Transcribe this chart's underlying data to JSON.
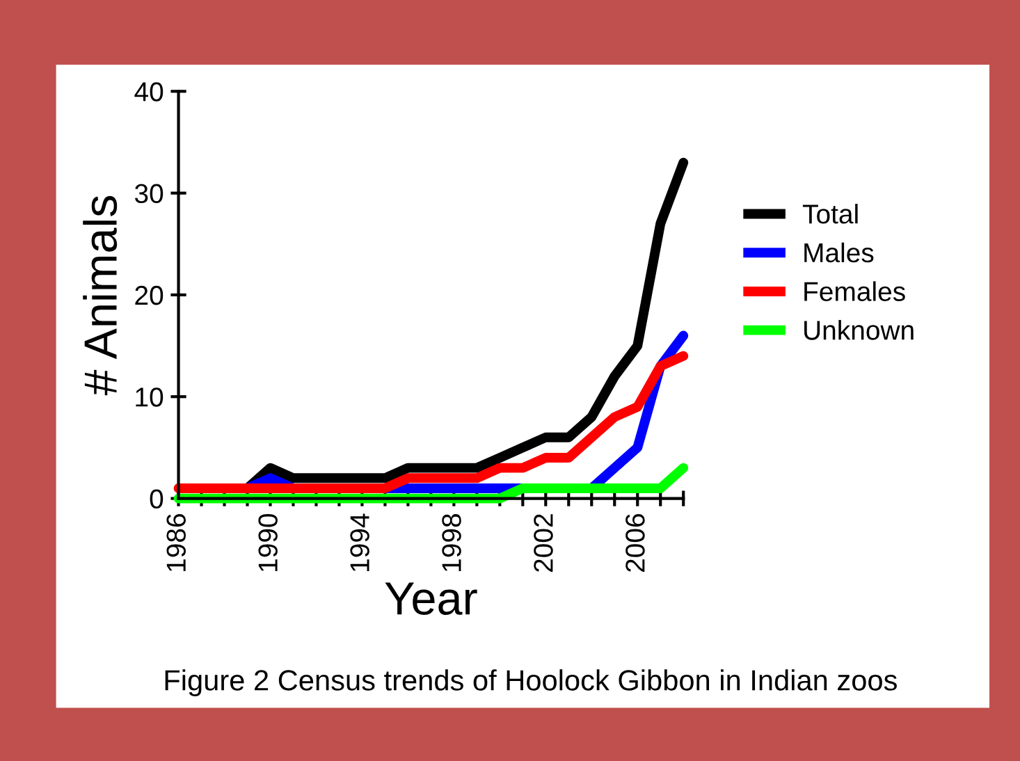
{
  "chart_data": {
    "type": "line",
    "xlabel": "Year",
    "ylabel": "# Animals",
    "x": [
      1986,
      1987,
      1988,
      1989,
      1990,
      1991,
      1992,
      1993,
      1994,
      1995,
      1996,
      1997,
      1998,
      1999,
      2000,
      2001,
      2002,
      2003,
      2004,
      2005,
      2006,
      2007,
      2008
    ],
    "series": [
      {
        "name": "Total",
        "color": "#000000",
        "values": [
          null,
          null,
          null,
          1,
          3,
          2,
          2,
          2,
          2,
          2,
          3,
          3,
          3,
          3,
          4,
          5,
          6,
          6,
          8,
          12,
          15,
          27,
          33
        ]
      },
      {
        "name": "Males",
        "color": "#0000ff",
        "values": [
          null,
          null,
          null,
          1,
          2,
          1,
          null,
          null,
          null,
          1,
          1,
          1,
          1,
          1,
          1,
          1,
          null,
          null,
          1,
          3,
          5,
          13,
          16
        ]
      },
      {
        "name": "Females",
        "color": "#ff0000",
        "values": [
          1,
          1,
          1,
          1,
          1,
          1,
          1,
          1,
          1,
          1,
          2,
          2,
          2,
          2,
          3,
          3,
          4,
          4,
          6,
          8,
          9,
          13,
          14
        ]
      },
      {
        "name": "Unknown",
        "color": "#00ff00",
        "values": [
          0,
          0,
          0,
          0,
          0,
          0,
          0,
          0,
          0,
          0,
          0,
          0,
          0,
          0,
          0,
          1,
          1,
          1,
          1,
          1,
          1,
          1,
          3
        ]
      }
    ],
    "xlim": [
      1986,
      2008
    ],
    "xticks": [
      1986,
      {
        "value": 1987,
        "label": null
      },
      {
        "value": 1988,
        "label": null
      },
      {
        "value": 1989,
        "label": null
      },
      1990,
      {
        "value": 1991,
        "label": null
      },
      {
        "value": 1992,
        "label": null
      },
      {
        "value": 1993,
        "label": null
      },
      1994,
      {
        "value": 1995,
        "label": null
      },
      {
        "value": 1996,
        "label": null
      },
      {
        "value": 1997,
        "label": null
      },
      1998,
      {
        "value": 1999,
        "label": null
      },
      {
        "value": 2000,
        "label": null
      },
      {
        "value": 2001,
        "label": null
      },
      2002,
      {
        "value": 2003,
        "label": null
      },
      {
        "value": 2004,
        "label": null
      },
      {
        "value": 2005,
        "label": null
      },
      2006,
      {
        "value": 2007,
        "label": null
      },
      {
        "value": 2008,
        "label": null
      }
    ],
    "ylim": [
      0,
      40
    ],
    "yticks": [
      0,
      10,
      20,
      30,
      40
    ],
    "legend": "right",
    "marker": "none",
    "line_style": "solid",
    "annotations": [
      "Figure 2 Census trends of Hoolock Gibbon in Indian zoos"
    ]
  }
}
